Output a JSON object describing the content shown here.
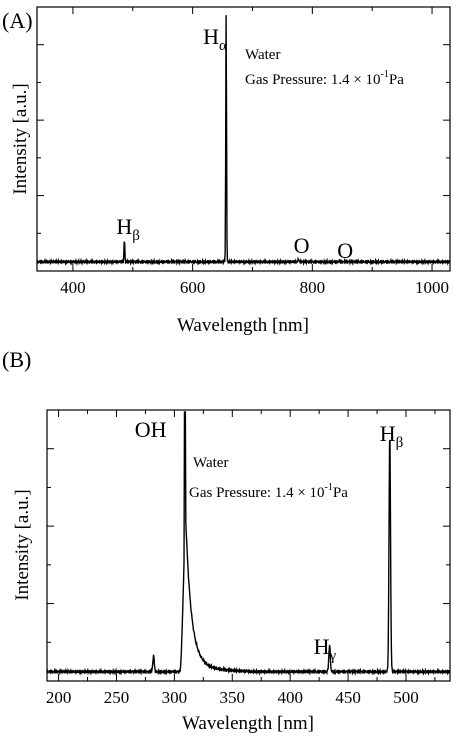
{
  "chart_data": [
    {
      "type": "line",
      "panel_label": "(A)",
      "xlabel": "Wavelength [nm]",
      "ylabel": "Intensity [a.u.]",
      "xlim": [
        340,
        1030
      ],
      "x_ticks": [
        400,
        600,
        800,
        1000
      ],
      "x_tick_labels": [
        "400",
        "600",
        "800",
        "1000"
      ],
      "y_tick_labels_shown": false,
      "legend_lines": [
        "Water",
        "Gas Pressure: 1.4 × 10",
        "-1",
        "Pa"
      ],
      "peak_labels": [
        {
          "main": "H",
          "sub": "α",
          "x": 656
        },
        {
          "main": "H",
          "sub": "β",
          "x": 486
        },
        {
          "main": "O",
          "sub": "",
          "x": 777
        },
        {
          "main": "O",
          "sub": "",
          "x": 845
        }
      ],
      "series": [
        {
          "baseline": 0.02,
          "peaks": [
            {
              "x": 486,
              "y": 0.11
            },
            {
              "x": 656,
              "y": 1.0
            },
            {
              "x": 777,
              "y": 0.032
            },
            {
              "x": 845,
              "y": 0.024
            }
          ]
        }
      ],
      "grid": false
    },
    {
      "type": "line",
      "panel_label": "(B)",
      "xlabel": "Wavelength [nm]",
      "ylabel": "Intensity [a.u.]",
      "xlim": [
        190,
        538
      ],
      "x_ticks": [
        200,
        250,
        300,
        350,
        400,
        450,
        500
      ],
      "x_tick_labels": [
        "200",
        "250",
        "300",
        "350",
        "400",
        "450",
        "500"
      ],
      "y_tick_labels_shown": false,
      "legend_lines": [
        "Water",
        "Gas Pressure: 1.4 × 10",
        "-1",
        "Pa"
      ],
      "peak_labels": [
        {
          "main": "OH",
          "sub": "",
          "x": 309
        },
        {
          "main": "H",
          "sub": "γ",
          "x": 434
        },
        {
          "main": "H",
          "sub": "β",
          "x": 486
        }
      ],
      "series": [
        {
          "baseline": 0.02,
          "oh_band": {
            "start": 305,
            "peak_x": 309,
            "peak_y": 1.0,
            "tail_end": 340
          },
          "peaks": [
            {
              "x": 282,
              "y": 0.08
            },
            {
              "x": 434,
              "y": 0.12
            },
            {
              "x": 486,
              "y": 0.93
            }
          ]
        }
      ],
      "grid": false
    }
  ]
}
